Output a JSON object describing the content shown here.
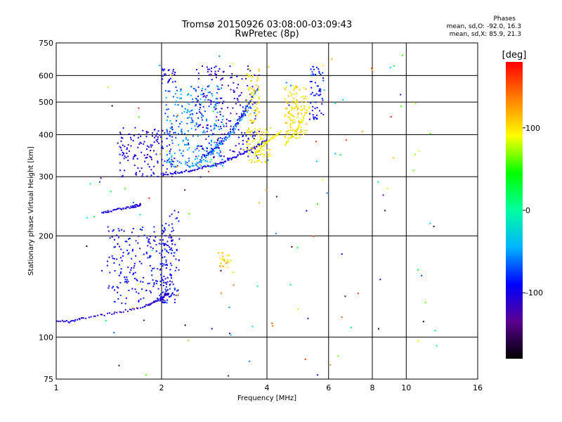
{
  "header": {
    "title": "Tromsø 20150926 03:08:00-03:09:43",
    "subtitle": "RwPretec (8p)"
  },
  "stats": {
    "heading": "Phases",
    "o_mode": "mean, sd,O: -92.0, 16.3",
    "x_mode": "mean, sd,X: 85.9, 21.3"
  },
  "colorbar": {
    "label": "[deg]",
    "range": [
      -180,
      180
    ],
    "ticks": [
      100,
      0,
      -100
    ],
    "colors": [
      "#000000",
      "#5a0090",
      "#0000ff",
      "#00b4ff",
      "#00ffa0",
      "#00ff00",
      "#ffff00",
      "#ff8000",
      "#ff0000"
    ]
  },
  "chart_data": {
    "type": "scatter",
    "xlabel": "Frequency [MHz]",
    "ylabel": "Stationary phase Virtual Height [km]",
    "xscale": "log",
    "yscale": "log",
    "xlim": [
      1,
      16
    ],
    "ylim": [
      75,
      750
    ],
    "x_ticks": [
      1,
      2,
      4,
      6,
      8,
      10,
      16
    ],
    "y_ticks": [
      75,
      100,
      200,
      300,
      400,
      500,
      600,
      750
    ],
    "grid": true,
    "series": [
      {
        "traces": [
          {
            "x": [
              1.0,
              1.1,
              1.2,
              1.4,
              1.6,
              1.8,
              1.9,
              2.0,
              2.05,
              2.1
            ],
            "y": [
              112,
              111,
              114,
              117,
              120,
              124,
              127,
              130,
              133,
              135
            ],
            "phase": -110
          },
          {
            "x": [
              1.35,
              1.45,
              1.55,
              1.65,
              1.7,
              1.75
            ],
            "y": [
              235,
              238,
              241,
              244,
              246,
              248
            ],
            "phase": -105
          },
          {
            "x": [
              2.0,
              2.2,
              2.4,
              2.6,
              2.8,
              3.0,
              3.2,
              3.4,
              3.6,
              3.8,
              4.0
            ],
            "y": [
              305,
              308,
              312,
              318,
              325,
              332,
              341,
              352,
              362,
              373,
              385
            ],
            "phase": -100
          },
          {
            "x": [
              2.4,
              2.6,
              2.8,
              3.0,
              3.2,
              3.4,
              3.6
            ],
            "y": [
              320,
              335,
              355,
              380,
              410,
              450,
              490
            ],
            "phase": -55
          },
          {
            "x": [
              2.6,
              2.8,
              3.0,
              3.2,
              3.4,
              3.6,
              3.8
            ],
            "y": [
              340,
              360,
              385,
              420,
              460,
              510,
              560
            ],
            "phase": -80
          },
          {
            "x": [
              3.7,
              3.85,
              4.0,
              4.2,
              4.4
            ],
            "y": [
              350,
              365,
              380,
              395,
              410
            ],
            "phase": 95
          },
          {
            "x": [
              4.5,
              4.7,
              4.9,
              5.1,
              5.3
            ],
            "y": [
              375,
              395,
              420,
              450,
              490
            ],
            "phase": 95
          }
        ],
        "clouds": [
          {
            "x_range": [
              1.4,
              2.15
            ],
            "y_range": [
              125,
              215
            ],
            "n": 220,
            "phase": -95
          },
          {
            "x_range": [
              2.0,
              2.25
            ],
            "y_range": [
              125,
              240
            ],
            "n": 90,
            "phase": -95
          },
          {
            "x_range": [
              1.5,
              2.2
            ],
            "y_range": [
              300,
              420
            ],
            "n": 150,
            "phase": -105
          },
          {
            "x_range": [
              2.05,
              3.0
            ],
            "y_range": [
              320,
              560
            ],
            "n": 260,
            "phase": -60
          },
          {
            "x_range": [
              2.5,
              3.8
            ],
            "y_range": [
              340,
              640
            ],
            "n": 200,
            "phase": -110
          },
          {
            "x_range": [
              3.5,
              4.1
            ],
            "y_range": [
              330,
              420
            ],
            "n": 80,
            "phase": 95
          },
          {
            "x_range": [
              3.5,
              3.8
            ],
            "y_range": [
              430,
              630
            ],
            "n": 60,
            "phase": 100
          },
          {
            "x_range": [
              4.5,
              5.2
            ],
            "y_range": [
              390,
              560
            ],
            "n": 130,
            "phase": 100
          },
          {
            "x_range": [
              5.3,
              5.8
            ],
            "y_range": [
              440,
              640
            ],
            "n": 60,
            "phase": -90
          },
          {
            "x_range": [
              2.9,
              3.15
            ],
            "y_range": [
              160,
              180
            ],
            "n": 25,
            "phase": 105
          },
          {
            "x_range": [
              2.0,
              2.2
            ],
            "y_range": [
              560,
              630
            ],
            "n": 25,
            "phase": -100
          }
        ]
      }
    ]
  }
}
